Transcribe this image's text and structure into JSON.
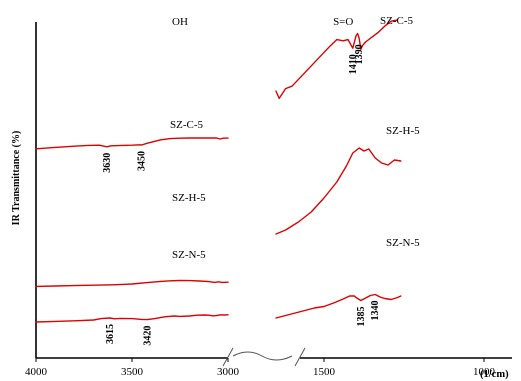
{
  "chart_data": {
    "type": "line",
    "title": "",
    "xlabel": "",
    "x_unit_label": "(1/cm)",
    "ylabel": "IR Transmittance (%)",
    "x_reversed": true,
    "x_axis_break": [
      3000,
      1650
    ],
    "x_ticks": [
      4000,
      3500,
      3000,
      1500,
      1000
    ],
    "x_tick_labels": [
      "4000",
      "3500",
      "3000",
      "1500",
      "1000"
    ],
    "y_ticks": [],
    "grid": false,
    "legend": "none",
    "series_color": "#e00000",
    "region_labels": [
      {
        "text": "OH",
        "x": 3250
      },
      {
        "text": "S=O",
        "x": 1440
      }
    ],
    "series": [
      {
        "name": "SZ-C-5",
        "label_left": "SZ-C-5",
        "label_right": "SZ-C-5",
        "ylim": [
          0,
          100
        ],
        "left": {
          "x": [
            4000,
            3900,
            3800,
            3730,
            3670,
            3640,
            3630,
            3610,
            3550,
            3500,
            3460,
            3450,
            3420,
            3350,
            3300,
            3250,
            3200,
            3150,
            3100,
            3060,
            3040,
            3025,
            3000
          ],
          "y": [
            48.0,
            51.5,
            54.5,
            56.5,
            57.0,
            54.0,
            53.0,
            55.5,
            56.5,
            57.0,
            58.0,
            57.5,
            62.0,
            70.5,
            73.5,
            74.5,
            75.0,
            75.0,
            75.2,
            75.0,
            72.5,
            74.5,
            74.8
          ]
        },
        "right": {
          "x": [
            1650,
            1640,
            1620,
            1600,
            1560,
            1520,
            1480,
            1460,
            1440,
            1425,
            1410,
            1400,
            1395,
            1390,
            1385,
            1380,
            1370,
            1350,
            1330,
            1310,
            1290,
            1270
          ],
          "y": [
            71.0,
            68.0,
            72.0,
            73.0,
            78.5,
            84.0,
            89.5,
            92.0,
            91.5,
            92.0,
            88.5,
            93.5,
            94.5,
            92.5,
            88.0,
            89.5,
            91.0,
            93.0,
            95.0,
            97.5,
            99.5,
            100.0
          ]
        }
      },
      {
        "name": "SZ-H-5",
        "label_left": "SZ-H-5",
        "label_right": "SZ-H-5",
        "ylim": [
          0,
          100
        ],
        "left": {
          "x": [
            4000,
            3900,
            3800,
            3700,
            3600,
            3500,
            3420,
            3350,
            3300,
            3250,
            3200,
            3150,
            3100,
            3070,
            3050,
            3030,
            3000
          ],
          "y": [
            34.0,
            35.0,
            36.0,
            37.0,
            38.0,
            40.0,
            43.5,
            46.5,
            48.0,
            48.8,
            48.5,
            47.5,
            46.0,
            44.0,
            45.5,
            44.0,
            44.5
          ]
        },
        "right": {
          "x": [
            1650,
            1620,
            1580,
            1540,
            1500,
            1460,
            1430,
            1410,
            1390,
            1375,
            1360,
            1340,
            1320,
            1300,
            1280,
            1260
          ],
          "y": [
            38.0,
            40.0,
            44.0,
            49.0,
            56.0,
            64.0,
            72.0,
            78.5,
            81.0,
            79.5,
            80.5,
            76.0,
            73.5,
            72.5,
            75.0,
            74.5
          ]
        }
      },
      {
        "name": "SZ-N-5",
        "label_left": "SZ-N-5",
        "label_right": "SZ-N-5",
        "ylim": [
          0,
          100
        ],
        "left": {
          "x": [
            4000,
            3900,
            3800,
            3700,
            3660,
            3615,
            3590,
            3560,
            3500,
            3450,
            3420,
            3380,
            3330,
            3280,
            3250,
            3200,
            3160,
            3120,
            3100,
            3080,
            3060,
            3040,
            3020,
            3000
          ],
          "y": [
            20.0,
            21.5,
            23.0,
            25.0,
            28.5,
            30.0,
            28.0,
            29.0,
            28.5,
            26.5,
            26.0,
            28.5,
            33.0,
            35.0,
            34.0,
            35.0,
            37.0,
            37.5,
            37.0,
            35.5,
            36.0,
            38.0,
            37.5,
            38.0
          ]
        },
        "right": {
          "x": [
            1650,
            1620,
            1590,
            1560,
            1530,
            1500,
            1470,
            1440,
            1420,
            1405,
            1400,
            1385,
            1370,
            1355,
            1340,
            1325,
            1310,
            1290,
            1270,
            1260
          ],
          "y": [
            22.0,
            24.5,
            27.0,
            29.5,
            32.0,
            33.5,
            37.0,
            41.0,
            44.0,
            44.0,
            42.5,
            39.5,
            42.0,
            44.5,
            45.5,
            43.0,
            41.5,
            40.5,
            42.5,
            44.0
          ]
        }
      }
    ],
    "peak_annotations": [
      {
        "text": "3630",
        "series": "SZ-C-5",
        "x": 3630
      },
      {
        "text": "3450",
        "series": "SZ-C-5",
        "x": 3450
      },
      {
        "text": "1410",
        "series": "SZ-C-5",
        "x": 1410
      },
      {
        "text": "1390",
        "series": "SZ-C-5",
        "x": 1390
      },
      {
        "text": "3615",
        "series": "SZ-N-5",
        "x": 3615
      },
      {
        "text": "3420",
        "series": "SZ-N-5",
        "x": 3420
      },
      {
        "text": "1385",
        "series": "SZ-N-5",
        "x": 1385
      },
      {
        "text": "1340",
        "series": "SZ-N-5",
        "x": 1340
      }
    ]
  }
}
